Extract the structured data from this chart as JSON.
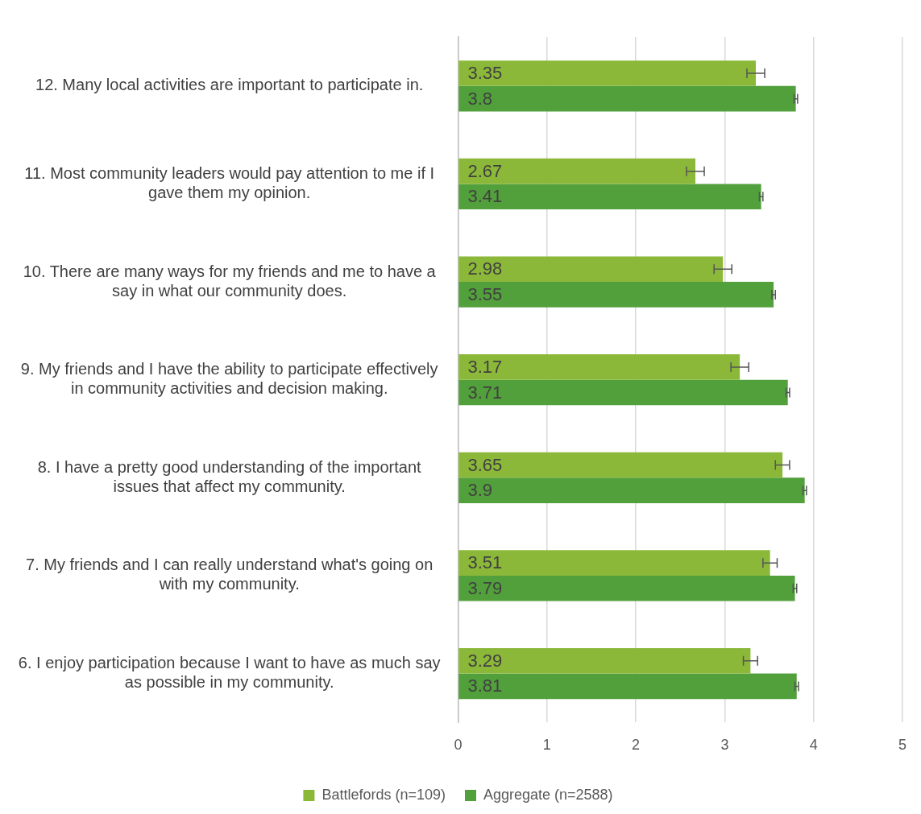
{
  "chart_data": {
    "type": "bar",
    "orientation": "horizontal",
    "categories": [
      "12. Many local activities are important to participate in.",
      "11. Most community leaders would pay attention to me if I gave them my opinion.",
      "10. There are many ways for my friends and me to have a say in what our community does.",
      "9. My friends and I have the ability to participate effectively in community activities and decision making.",
      "8. I have a pretty good understanding of the important issues that affect my community.",
      "7. My friends and I can really understand what's going on with my community.",
      "6. I enjoy participation because I want to have as much say as possible in my community."
    ],
    "series": [
      {
        "name": "Battlefords (n=109)",
        "color": "#8cb83a",
        "values": [
          3.35,
          2.67,
          2.98,
          3.17,
          3.65,
          3.51,
          3.29
        ],
        "errors": [
          0.1,
          0.1,
          0.1,
          0.1,
          0.08,
          0.08,
          0.08
        ]
      },
      {
        "name": "Aggregate (n=2588)",
        "color": "#52a03c",
        "values": [
          3.8,
          3.41,
          3.55,
          3.71,
          3.9,
          3.79,
          3.81
        ],
        "errors": [
          0.02,
          0.02,
          0.02,
          0.02,
          0.02,
          0.02,
          0.02
        ]
      }
    ],
    "xlim": [
      0,
      5
    ],
    "xticks": [
      0,
      1,
      2,
      3,
      4,
      5
    ],
    "grid": "x",
    "legend": "bottom",
    "data_labels": true
  }
}
